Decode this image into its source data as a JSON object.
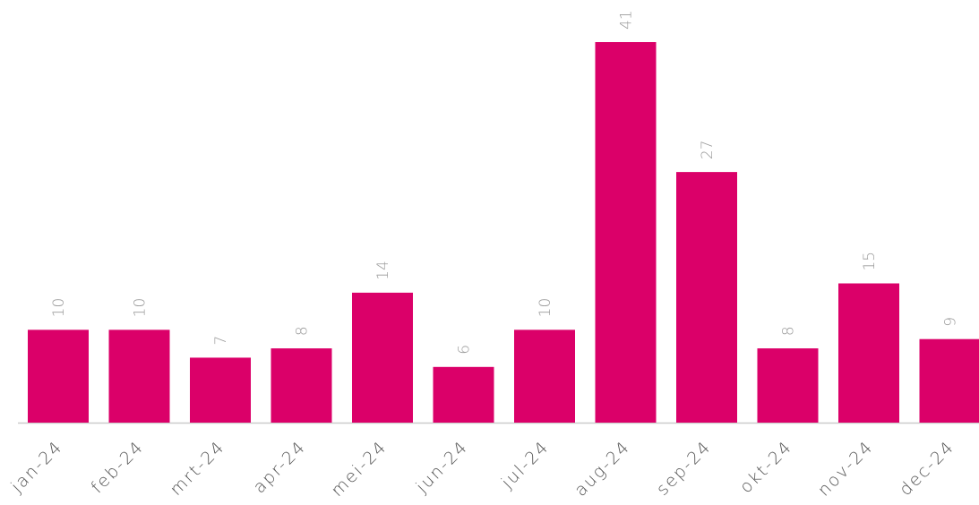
{
  "colors": {
    "bar": "#DB0069",
    "axis": "#cccccc",
    "value_label": "#9a9a9a",
    "tick_label": "#555555",
    "background": "#ffffff"
  },
  "chart_data": {
    "type": "bar",
    "title": "",
    "xlabel": "",
    "ylabel": "",
    "categories": [
      "jan-24",
      "feb-24",
      "mrt-24",
      "apr-24",
      "mei-24",
      "jun-24",
      "jul-24",
      "aug-24",
      "sep-24",
      "okt-24",
      "nov-24",
      "dec-24"
    ],
    "values": [
      10,
      10,
      7,
      8,
      14,
      6,
      10,
      41,
      27,
      8,
      15,
      9
    ],
    "ylim": [
      0,
      41
    ],
    "grid": false,
    "legend": "none",
    "data_labels": true
  }
}
